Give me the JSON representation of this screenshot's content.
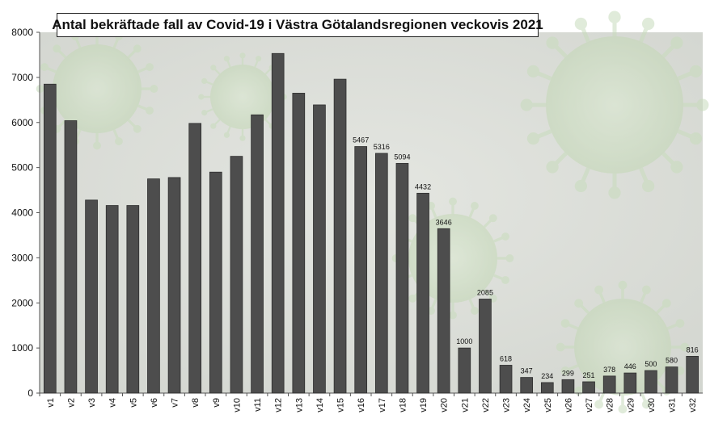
{
  "colors": {
    "bar": "#4d4d4d",
    "bar_edge": "#2e2e2e",
    "plot_background": "#d9dcd6",
    "virus_tint": "#c8dcbc",
    "axis_text": "#111111",
    "grid": "#d0d0d0"
  },
  "chart_data": {
    "type": "bar",
    "title": "Antal bekräftade fall av Covid-19 i Västra Götalandsregionen veckovis 2021",
    "xlabel": "",
    "ylabel": "",
    "ylim": [
      0,
      8000
    ],
    "yticks": [
      0,
      1000,
      2000,
      3000,
      4000,
      5000,
      6000,
      7000,
      8000
    ],
    "grid": false,
    "legend": "none",
    "categories": [
      "v1",
      "v2",
      "v3",
      "v4",
      "v5",
      "v6",
      "v7",
      "v8",
      "v9",
      "v10",
      "v11",
      "v12",
      "v13",
      "v14",
      "v15",
      "v16",
      "v17",
      "v18",
      "v19",
      "v20",
      "v21",
      "v22",
      "v23",
      "v24",
      "v25",
      "v26",
      "v27",
      "v28",
      "v29",
      "v30",
      "v31",
      "v32"
    ],
    "values": [
      6850,
      6040,
      4280,
      4160,
      4160,
      4750,
      4780,
      5980,
      4900,
      5250,
      6170,
      7530,
      6650,
      6390,
      6960,
      5467,
      5316,
      5094,
      4432,
      3646,
      1000,
      2085,
      618,
      347,
      234,
      299,
      251,
      378,
      446,
      500,
      580,
      816
    ],
    "data_labels": [
      null,
      null,
      null,
      null,
      null,
      null,
      null,
      null,
      null,
      null,
      null,
      null,
      null,
      null,
      null,
      "5467",
      "5316",
      "5094",
      "4432",
      "3646",
      "1000",
      "2085",
      "618",
      "347",
      "234",
      "299",
      "251",
      "378",
      "446",
      "500",
      "580",
      "816"
    ]
  }
}
